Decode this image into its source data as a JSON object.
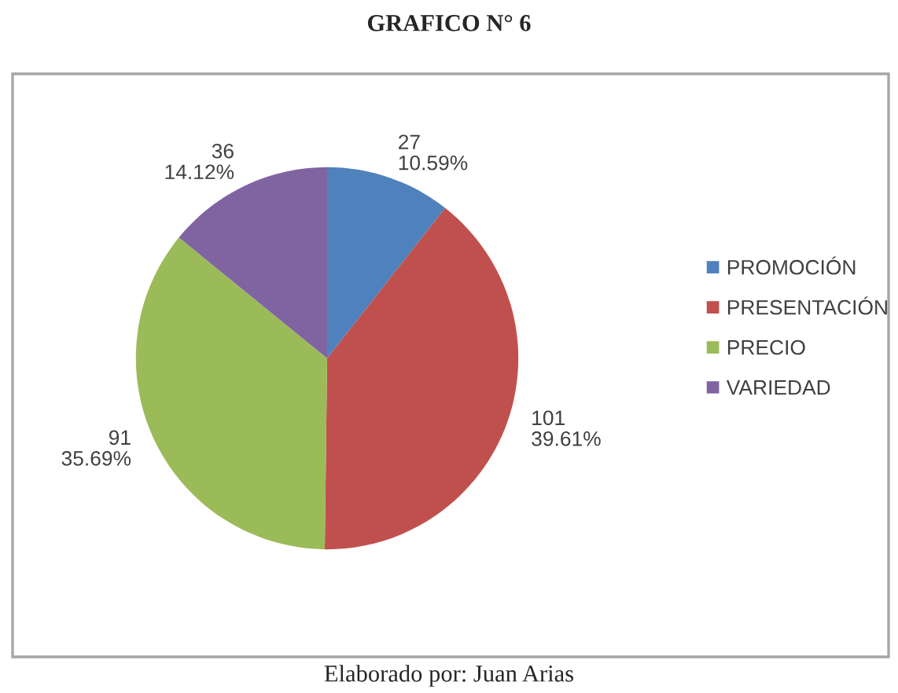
{
  "chart_data": {
    "type": "pie",
    "title": "GRAFICO N° 6",
    "categories": [
      "PROMOCIÓN",
      "PRESENTACIÓN",
      "PRECIO",
      "VARIEDAD"
    ],
    "values": [
      27,
      101,
      91,
      36
    ],
    "colors": [
      "#4f81bd",
      "#c0504d",
      "#9bbb59",
      "#8064a2"
    ],
    "value_labels": [
      "27\n10.59%",
      "101\n39.61%",
      "91\n35.69%",
      "36\n14.12%"
    ],
    "legend": "right",
    "annotations": [
      "Elaborado por: Juan Arias"
    ]
  }
}
